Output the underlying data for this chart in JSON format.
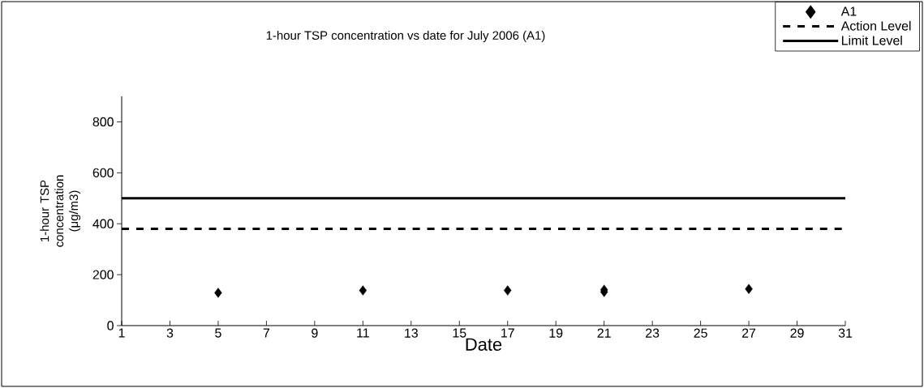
{
  "chart_data": {
    "type": "scatter",
    "title": "1-hour TSP concentration vs date for July 2006 (A1)",
    "xlabel": "Date",
    "ylabel": "1-hour TSP concentration (μg/m3)",
    "xlim": [
      1,
      31
    ],
    "xticks": [
      1,
      3,
      5,
      7,
      9,
      11,
      13,
      15,
      17,
      19,
      21,
      23,
      25,
      27,
      29,
      31
    ],
    "ylim": [
      0,
      900
    ],
    "yticks": [
      0,
      200,
      400,
      600,
      800
    ],
    "grid": false,
    "legend": "top right",
    "series": [
      {
        "name": "A1",
        "color": "#000000",
        "marker": "diamond",
        "x": [
          5,
          11,
          17,
          21,
          21,
          27
        ],
        "values": [
          129,
          138,
          138,
          141,
          132,
          144
        ]
      },
      {
        "name": "Action Level",
        "type": "line",
        "color": "#000000",
        "marker": "none",
        "line_style": "dashed",
        "x": [
          1,
          31
        ],
        "values": [
          380,
          380
        ]
      },
      {
        "name": "Limit Level",
        "type": "line",
        "color": "#000000",
        "marker": "none",
        "line_style": "solid",
        "x": [
          1,
          31
        ],
        "values": [
          500,
          500
        ]
      }
    ]
  }
}
